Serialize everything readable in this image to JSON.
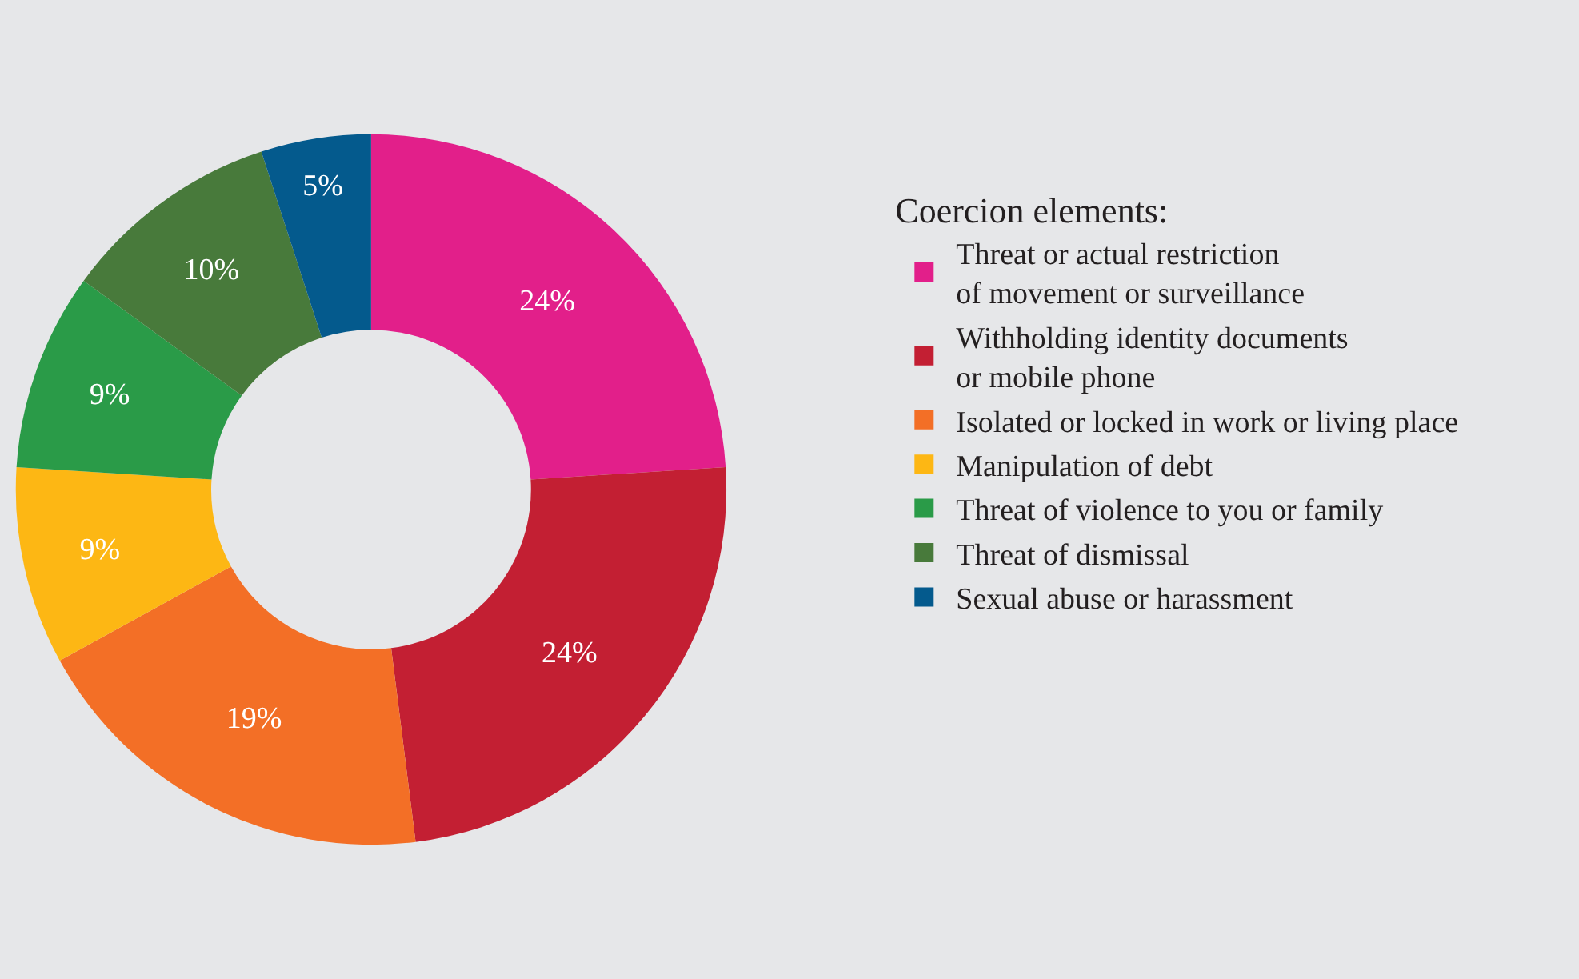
{
  "chart_data": {
    "type": "donut",
    "legend_title": "Coercion elements:",
    "legend": "right",
    "categories": [
      "Threat or actual restriction\nof movement or surveillance",
      "Withholding identity documents\nor mobile phone",
      "Isolated or locked in work or living place",
      "Manipulation of debt",
      "Threat of violence to you or family",
      "Threat of dismissal",
      "Sexual abuse or harassment"
    ],
    "values": [
      24,
      24,
      19,
      9,
      9,
      10,
      5
    ],
    "value_labels": [
      "24%",
      "24%",
      "19%",
      "9%",
      "9%",
      "10%",
      "5%"
    ],
    "colors": [
      "#e21f8a",
      "#c31f33",
      "#f36f26",
      "#fdb714",
      "#2a9b48",
      "#487a3b",
      "#045a8d"
    ]
  }
}
